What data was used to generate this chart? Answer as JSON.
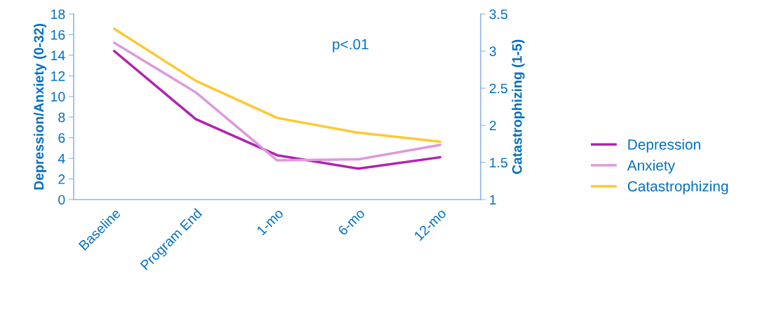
{
  "chart_data": {
    "type": "line",
    "categories": [
      "Baseline",
      "Program End",
      "1-mo",
      "6-mo",
      "12-mo"
    ],
    "ylabel": "Depression/Anxiety (0-32)",
    "y2label": "Catastrophizing (1-5)",
    "ylim": [
      0,
      18
    ],
    "yticks": [
      0,
      2,
      4,
      6,
      8,
      10,
      12,
      14,
      16,
      18
    ],
    "y2lim": [
      1,
      3.5
    ],
    "y2ticks": [
      1,
      1.5,
      2,
      2.5,
      3,
      3.5
    ],
    "series": [
      {
        "name": "Depression",
        "color": "#b320b3",
        "values": [
          14.4,
          7.8,
          4.3,
          3.0,
          4.1
        ]
      },
      {
        "name": "Anxiety",
        "color": "#dd99dd",
        "values": [
          15.2,
          10.4,
          3.8,
          3.9,
          5.3
        ]
      },
      {
        "name": "Catastrophizing",
        "color": "#ffc830",
        "axis": "y2",
        "values": [
          3.3,
          2.6,
          2.1,
          1.9,
          1.78
        ]
      }
    ],
    "annotations": [
      "p<.01"
    ],
    "legend": "right",
    "grid": false,
    "marker": "none",
    "line_style": "solid"
  }
}
